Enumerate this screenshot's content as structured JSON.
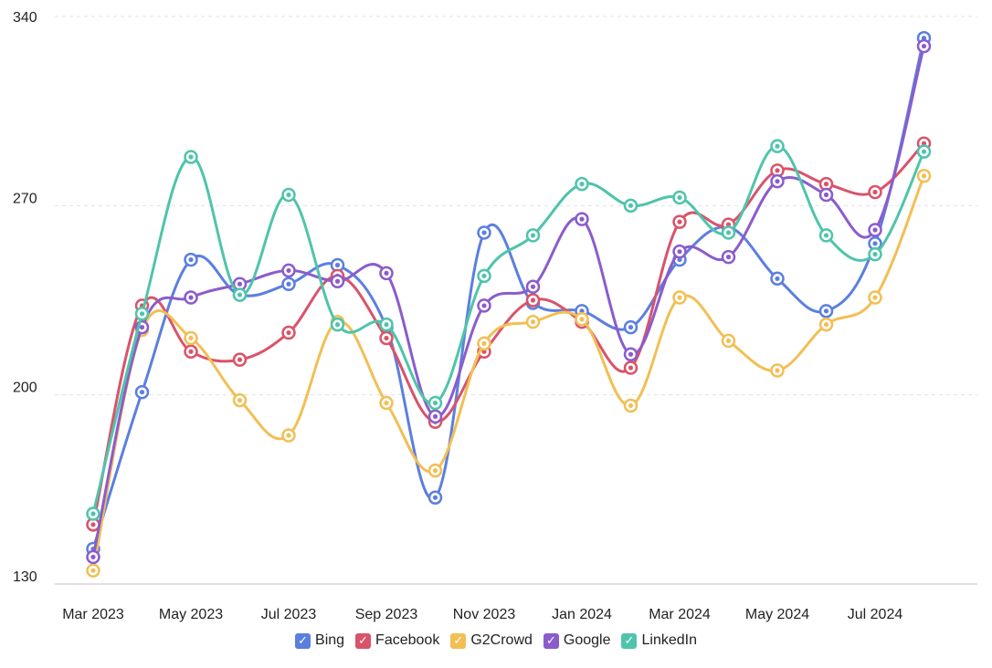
{
  "chart_data": {
    "type": "line",
    "title": "",
    "xlabel": "",
    "ylabel": "",
    "ylim": [
      130,
      340
    ],
    "yticks": [
      130,
      200,
      270,
      340
    ],
    "x": [
      "Mar 2023",
      "Apr 2023",
      "May 2023",
      "Jun 2023",
      "Jul 2023",
      "Aug 2023",
      "Sep 2023",
      "Oct 2023",
      "Nov 2023",
      "Dec 2023",
      "Jan 2024",
      "Feb 2024",
      "Mar 2024",
      "Apr 2024",
      "May 2024",
      "Jun 2024",
      "Jul 2024",
      "Aug 2024"
    ],
    "xtick_labels": [
      "Mar 2023",
      "May 2023",
      "Jul 2023",
      "Sep 2023",
      "Nov 2023",
      "Jan 2024",
      "Mar 2024",
      "May 2024",
      "Jul 2024"
    ],
    "grid": true,
    "legend_position": "bottom-center",
    "series": [
      {
        "name": "Bing",
        "color": "#5b7fe0",
        "values": [
          143,
          201,
          250,
          237,
          241,
          248,
          225,
          162,
          260,
          234,
          231,
          225,
          250,
          262,
          243,
          231,
          256,
          332
        ]
      },
      {
        "name": "Facebook",
        "color": "#d9536a",
        "values": [
          152,
          233,
          216,
          213,
          223,
          244,
          221,
          190,
          216,
          235,
          227,
          210,
          264,
          263,
          283,
          278,
          275,
          293
        ]
      },
      {
        "name": "G2Crowd",
        "color": "#f2bf55",
        "values": [
          135,
          224,
          221,
          198,
          185,
          227,
          197,
          172,
          219,
          227,
          228,
          196,
          236,
          220,
          209,
          226,
          236,
          281
        ]
      },
      {
        "name": "Google",
        "color": "#8b5ccc",
        "values": [
          140,
          225,
          236,
          241,
          246,
          242,
          245,
          192,
          233,
          240,
          265,
          215,
          253,
          251,
          279,
          274,
          261,
          329
        ]
      },
      {
        "name": "LinkedIn",
        "color": "#4fc4ab",
        "values": [
          156,
          230,
          288,
          237,
          274,
          226,
          226,
          197,
          244,
          259,
          278,
          270,
          273,
          260,
          292,
          259,
          252,
          290
        ]
      }
    ]
  }
}
